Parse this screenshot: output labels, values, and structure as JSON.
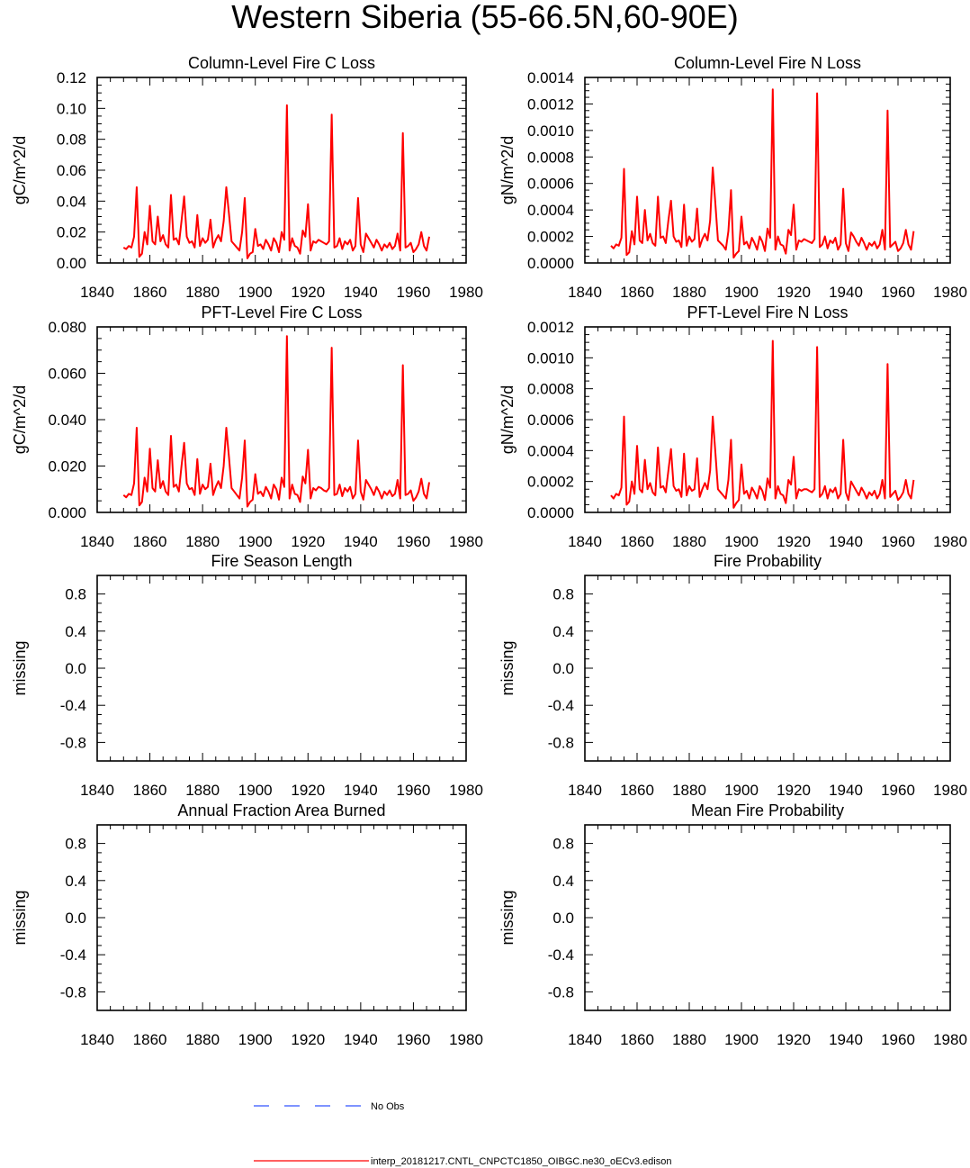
{
  "figure": {
    "title": "Western Siberia (55-66.5N,60-90E)",
    "legend": [
      {
        "label": "No Obs",
        "color": "#3355ff",
        "style": "dashed"
      },
      {
        "label": "interp_20181217.CNTL_CNPCTC1850_OIBGC.ne30_oECv3.edison",
        "color": "#ff0000",
        "style": "solid"
      }
    ]
  },
  "chart_data": [
    {
      "type": "line",
      "title": "Column-Level Fire C Loss",
      "ylabel": "gC/m^2/d",
      "xlim": [
        1840,
        1980
      ],
      "ylim": [
        0,
        0.12
      ],
      "xticks": [
        1840,
        1860,
        1880,
        1900,
        1920,
        1940,
        1960,
        1980
      ],
      "yticks": [
        0,
        0.02,
        0.04,
        0.06,
        0.08,
        0.1,
        0.12
      ],
      "ytick_labels": [
        "0.00",
        "0.02",
        "0.04",
        "0.06",
        "0.08",
        "0.10",
        "0.12"
      ],
      "x_start": 1850,
      "series": [
        {
          "name": "interp_20181217.CNTL_CNPCTC1850_OIBGC.ne30_oECv3.edison",
          "color": "#ff0000",
          "values": [
            0.01,
            0.009,
            0.011,
            0.01,
            0.017,
            0.049,
            0.004,
            0.006,
            0.02,
            0.012,
            0.037,
            0.014,
            0.012,
            0.03,
            0.014,
            0.018,
            0.012,
            0.01,
            0.044,
            0.015,
            0.016,
            0.012,
            0.027,
            0.043,
            0.017,
            0.013,
            0.014,
            0.01,
            0.031,
            0.011,
            0.016,
            0.013,
            0.015,
            0.028,
            0.01,
            0.015,
            0.018,
            0.014,
            0.027,
            0.049,
            0.032,
            0.014,
            0.012,
            0.01,
            0.008,
            0.02,
            0.042,
            0.003,
            0.006,
            0.007,
            0.022,
            0.011,
            0.012,
            0.009,
            0.015,
            0.012,
            0.008,
            0.016,
            0.013,
            0.007,
            0.02,
            0.015,
            0.102,
            0.008,
            0.016,
            0.011,
            0.01,
            0.006,
            0.021,
            0.017,
            0.038,
            0.008,
            0.014,
            0.013,
            0.015,
            0.014,
            0.013,
            0.012,
            0.014,
            0.096,
            0.01,
            0.011,
            0.016,
            0.009,
            0.014,
            0.012,
            0.015,
            0.008,
            0.011,
            0.042,
            0.012,
            0.007,
            0.019,
            0.016,
            0.013,
            0.01,
            0.015,
            0.012,
            0.008,
            0.012,
            0.01,
            0.013,
            0.009,
            0.011,
            0.019,
            0.008,
            0.084,
            0.01,
            0.011,
            0.013,
            0.007,
            0.009,
            0.012,
            0.02,
            0.011,
            0.008,
            0.017
          ]
        }
      ]
    },
    {
      "type": "line",
      "title": "Column-Level Fire N Loss",
      "ylabel": "gN/m^2/d",
      "xlim": [
        1840,
        1980
      ],
      "ylim": [
        0,
        0.0014
      ],
      "xticks": [
        1840,
        1860,
        1880,
        1900,
        1920,
        1940,
        1960,
        1980
      ],
      "yticks": [
        0,
        0.0002,
        0.0004,
        0.0006,
        0.0008,
        0.001,
        0.0012,
        0.0014
      ],
      "ytick_labels": [
        "0.0000",
        "0.0002",
        "0.0004",
        "0.0006",
        "0.0008",
        "0.0010",
        "0.0012",
        "0.0014"
      ],
      "x_start": 1850,
      "series": [
        {
          "name": "interp_20181217.CNTL_CNPCTC1850_OIBGC.ne30_oECv3.edison",
          "color": "#ff0000",
          "values": [
            0.00013,
            0.00011,
            0.00014,
            0.00013,
            0.00019,
            0.00071,
            6e-05,
            8e-05,
            0.00024,
            0.00014,
            0.0005,
            0.00017,
            0.00015,
            0.0004,
            0.00017,
            0.00022,
            0.00015,
            0.00013,
            0.0005,
            0.00019,
            0.0002,
            0.00015,
            0.00032,
            0.00047,
            0.0002,
            0.00016,
            0.00017,
            0.00012,
            0.00044,
            0.00013,
            0.0002,
            0.00016,
            0.00018,
            0.00041,
            0.00012,
            0.00018,
            0.00022,
            0.00017,
            0.00032,
            0.00072,
            0.00045,
            0.00017,
            0.00015,
            0.00013,
            0.0001,
            0.00024,
            0.00055,
            4e-05,
            7e-05,
            9e-05,
            0.00035,
            0.00014,
            0.00016,
            0.00011,
            0.00019,
            0.00015,
            0.0001,
            0.0002,
            0.00016,
            9e-05,
            0.00026,
            0.00019,
            0.00131,
            0.0001,
            0.0002,
            0.00014,
            0.00013,
            7e-05,
            0.00025,
            0.00021,
            0.00044,
            0.0001,
            0.00017,
            0.00016,
            0.00018,
            0.00017,
            0.00016,
            0.00015,
            0.00018,
            0.00128,
            0.00012,
            0.00014,
            0.0002,
            0.00011,
            0.00017,
            0.00015,
            0.00019,
            0.0001,
            0.00014,
            0.00056,
            0.00015,
            9e-05,
            0.00023,
            0.0002,
            0.00016,
            0.00013,
            0.00019,
            0.00015,
            0.0001,
            0.00015,
            0.00013,
            0.00016,
            0.00011,
            0.00014,
            0.00025,
            0.0001,
            0.00115,
            0.00012,
            0.00014,
            0.00016,
            9e-05,
            0.00011,
            0.00015,
            0.00025,
            0.00014,
            0.0001,
            0.00024
          ]
        }
      ]
    },
    {
      "type": "line",
      "title": "PFT-Level Fire C Loss",
      "ylabel": "gC/m^2/d",
      "xlim": [
        1840,
        1980
      ],
      "ylim": [
        0,
        0.08
      ],
      "xticks": [
        1840,
        1860,
        1880,
        1900,
        1920,
        1940,
        1960,
        1980
      ],
      "yticks": [
        0,
        0.02,
        0.04,
        0.06,
        0.08
      ],
      "ytick_labels": [
        "0.000",
        "0.020",
        "0.040",
        "0.060",
        "0.080"
      ],
      "x_start": 1850,
      "series": [
        {
          "name": "interp_20181217.CNTL_CNPCTC1850_OIBGC.ne30_oECv3.edison",
          "color": "#ff0000",
          "values": [
            0.0075,
            0.0065,
            0.008,
            0.0075,
            0.0125,
            0.0365,
            0.003,
            0.0045,
            0.015,
            0.009,
            0.0275,
            0.0105,
            0.009,
            0.0225,
            0.0105,
            0.0135,
            0.009,
            0.0075,
            0.033,
            0.011,
            0.012,
            0.009,
            0.02,
            0.03,
            0.0125,
            0.01,
            0.0105,
            0.0075,
            0.023,
            0.008,
            0.012,
            0.01,
            0.011,
            0.021,
            0.0075,
            0.011,
            0.0135,
            0.0105,
            0.02,
            0.0365,
            0.024,
            0.0105,
            0.009,
            0.0075,
            0.006,
            0.015,
            0.031,
            0.0025,
            0.0045,
            0.0055,
            0.0165,
            0.008,
            0.009,
            0.007,
            0.011,
            0.009,
            0.006,
            0.012,
            0.01,
            0.0055,
            0.015,
            0.011,
            0.076,
            0.006,
            0.012,
            0.008,
            0.0075,
            0.0045,
            0.0155,
            0.0125,
            0.027,
            0.006,
            0.0105,
            0.0095,
            0.011,
            0.0105,
            0.0095,
            0.009,
            0.0105,
            0.071,
            0.0075,
            0.008,
            0.012,
            0.007,
            0.0105,
            0.009,
            0.011,
            0.006,
            0.008,
            0.031,
            0.009,
            0.0055,
            0.014,
            0.012,
            0.01,
            0.0075,
            0.011,
            0.009,
            0.006,
            0.009,
            0.0075,
            0.0095,
            0.007,
            0.008,
            0.014,
            0.006,
            0.0635,
            0.0075,
            0.008,
            0.0095,
            0.005,
            0.0065,
            0.009,
            0.0145,
            0.008,
            0.006,
            0.013
          ]
        }
      ]
    },
    {
      "type": "line",
      "title": "PFT-Level Fire N Loss",
      "ylabel": "gN/m^2/d",
      "xlim": [
        1840,
        1980
      ],
      "ylim": [
        0,
        0.0012
      ],
      "xticks": [
        1840,
        1860,
        1880,
        1900,
        1920,
        1940,
        1960,
        1980
      ],
      "yticks": [
        0,
        0.0002,
        0.0004,
        0.0006,
        0.0008,
        0.001,
        0.0012
      ],
      "ytick_labels": [
        "0.0000",
        "0.0002",
        "0.0004",
        "0.0006",
        "0.0008",
        "0.0010",
        "0.0012"
      ],
      "x_start": 1850,
      "series": [
        {
          "name": "interp_20181217.CNTL_CNPCTC1850_OIBGC.ne30_oECv3.edison",
          "color": "#ff0000",
          "values": [
            0.00011,
            9e-05,
            0.00012,
            0.00011,
            0.00016,
            0.00062,
            5e-05,
            7e-05,
            0.0002,
            0.00012,
            0.00043,
            0.00015,
            0.00013,
            0.00034,
            0.00015,
            0.00019,
            0.00013,
            0.00011,
            0.00042,
            0.00016,
            0.00017,
            0.00013,
            0.00027,
            0.00041,
            0.00017,
            0.00014,
            0.00015,
            0.0001,
            0.00038,
            0.00011,
            0.00017,
            0.00014,
            0.00015,
            0.00035,
            0.0001,
            0.00015,
            0.00019,
            0.00015,
            0.00027,
            0.00062,
            0.00039,
            0.00015,
            0.00013,
            0.00011,
            9e-05,
            0.00021,
            0.00047,
            3e-05,
            6e-05,
            8e-05,
            0.00031,
            0.00012,
            0.00014,
            9e-05,
            0.00016,
            0.00013,
            9e-05,
            0.00017,
            0.00014,
            8e-05,
            0.00022,
            0.00016,
            0.00111,
            9e-05,
            0.00017,
            0.00012,
            0.00011,
            6e-05,
            0.00021,
            0.00018,
            0.00036,
            9e-05,
            0.00015,
            0.00014,
            0.00015,
            0.00015,
            0.00014,
            0.00013,
            0.00015,
            0.00107,
            0.0001,
            0.00012,
            0.00017,
            9e-05,
            0.00015,
            0.00013,
            0.00016,
            9e-05,
            0.00012,
            0.00047,
            0.00013,
            8e-05,
            0.0002,
            0.00017,
            0.00014,
            0.00011,
            0.00016,
            0.00013,
            9e-05,
            0.00013,
            0.00011,
            0.00014,
            9e-05,
            0.00012,
            0.00021,
            9e-05,
            0.00096,
            0.0001,
            0.00012,
            0.00014,
            8e-05,
            0.0001,
            0.00013,
            0.00021,
            0.00012,
            9e-05,
            0.00021
          ]
        }
      ]
    },
    {
      "type": "line",
      "title": "Fire Season Length",
      "ylabel": "missing",
      "xlim": [
        1840,
        1980
      ],
      "ylim": [
        -1,
        1
      ],
      "xticks": [
        1840,
        1860,
        1880,
        1900,
        1920,
        1940,
        1960,
        1980
      ],
      "yticks": [
        -0.8,
        -0.4,
        0,
        0.4,
        0.8
      ],
      "ytick_labels": [
        "-0.8",
        "-0.4",
        "0.0",
        "0.4",
        "0.8"
      ],
      "series": []
    },
    {
      "type": "line",
      "title": "Fire Probability",
      "ylabel": "missing",
      "xlim": [
        1840,
        1980
      ],
      "ylim": [
        -1,
        1
      ],
      "xticks": [
        1840,
        1860,
        1880,
        1900,
        1920,
        1940,
        1960,
        1980
      ],
      "yticks": [
        -0.8,
        -0.4,
        0,
        0.4,
        0.8
      ],
      "ytick_labels": [
        "-0.8",
        "-0.4",
        "0.0",
        "0.4",
        "0.8"
      ],
      "series": []
    },
    {
      "type": "line",
      "title": "Annual Fraction Area Burned",
      "ylabel": "missing",
      "xlim": [
        1840,
        1980
      ],
      "ylim": [
        -1,
        1
      ],
      "xticks": [
        1840,
        1860,
        1880,
        1900,
        1920,
        1940,
        1960,
        1980
      ],
      "yticks": [
        -0.8,
        -0.4,
        0,
        0.4,
        0.8
      ],
      "ytick_labels": [
        "-0.8",
        "-0.4",
        "0.0",
        "0.4",
        "0.8"
      ],
      "series": []
    },
    {
      "type": "line",
      "title": "Mean Fire Probability",
      "ylabel": "missing",
      "xlim": [
        1840,
        1980
      ],
      "ylim": [
        -1,
        1
      ],
      "xticks": [
        1840,
        1860,
        1880,
        1900,
        1920,
        1940,
        1960,
        1980
      ],
      "yticks": [
        -0.8,
        -0.4,
        0,
        0.4,
        0.8
      ],
      "ytick_labels": [
        "-0.8",
        "-0.4",
        "0.0",
        "0.4",
        "0.8"
      ],
      "series": []
    }
  ]
}
